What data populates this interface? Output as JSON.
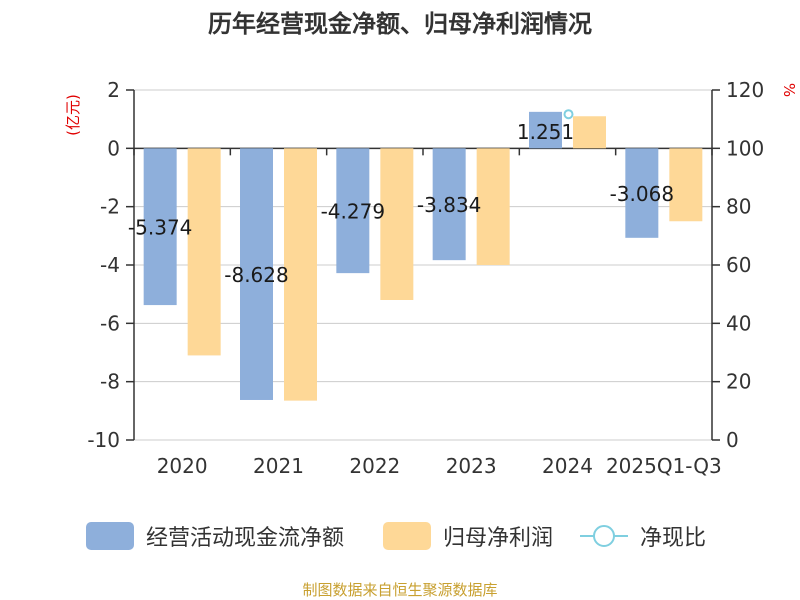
{
  "chart_data": {
    "type": "bar",
    "title": "历年经营现金净额、归母净利润情况",
    "categories": [
      "2020",
      "2021",
      "2022",
      "2023",
      "2024",
      "2025Q1-Q3"
    ],
    "series": [
      {
        "name": "经营活动现金流净额",
        "axis": "left",
        "color": "#8eafdb",
        "values": [
          -5.374,
          -8.628,
          -4.279,
          -3.834,
          1.251,
          -3.068
        ]
      },
      {
        "name": "归母净利润",
        "axis": "left",
        "color": "#fed897",
        "values": [
          -7.1,
          -8.65,
          -5.2,
          -4.0,
          1.1,
          -2.5
        ]
      },
      {
        "name": "净现比",
        "axis": "right",
        "type": "line",
        "color": "#7fcfe0",
        "values": [
          null,
          null,
          null,
          null,
          111.7,
          null
        ]
      }
    ],
    "data_labels": [
      "-5.374",
      "-8.628",
      "-4.279",
      "-3.834",
      "1.251",
      "-3.068"
    ],
    "ylabel": "(亿元)",
    "ylabel_right": "%",
    "ylim": [
      -10,
      2
    ],
    "ylim_right": [
      0,
      120
    ],
    "yticks": [
      2,
      0,
      -2,
      -4,
      -6,
      -8,
      -10
    ],
    "yticks_right": [
      120,
      100,
      80,
      60,
      40,
      20,
      0
    ],
    "grid": true,
    "legend_position": "bottom",
    "source": "制图数据来自恒生聚源数据库"
  }
}
